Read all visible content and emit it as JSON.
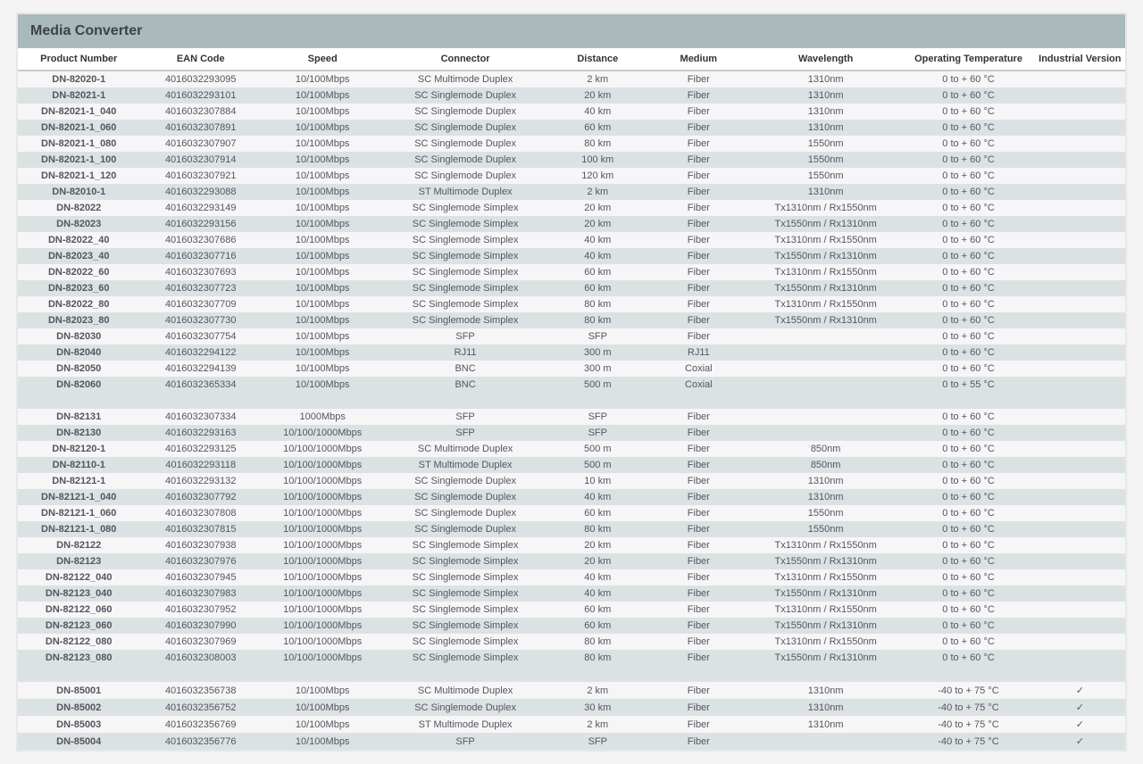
{
  "title": "Media Converter",
  "columns": [
    {
      "label": "Product Number",
      "width": "11%"
    },
    {
      "label": "EAN Code",
      "width": "11%"
    },
    {
      "label": "Speed",
      "width": "11%"
    },
    {
      "label": "Connector",
      "width": "15%"
    },
    {
      "label": "Distance",
      "width": "9%"
    },
    {
      "label": "Medium",
      "width": "9%"
    },
    {
      "label": "Wavelength",
      "width": "14%"
    },
    {
      "label": "Operating Temperature",
      "width": "12%"
    },
    {
      "label": "Industrial Version",
      "width": "8%"
    }
  ],
  "colors": {
    "page_bg": "#f3f3f3",
    "header_bg": "#aab9bc",
    "header_text": "#3b4347",
    "row_even_bg": "#f6f6f6",
    "row_odd_bg": "#dbe2e3",
    "thead_border": "#cacaca",
    "text": "#555560",
    "pn_text": "#3a3a44"
  },
  "check_glyph": "✓",
  "rows": [
    {
      "pn": "DN-82020-1",
      "ean": "4016032293095",
      "speed": "10/100Mbps",
      "conn": "SC Multimode Duplex",
      "dist": "2 km",
      "med": "Fiber",
      "wav": "1310nm",
      "temp": "0 to + 60 °C",
      "ind": ""
    },
    {
      "pn": "DN-82021-1",
      "ean": "4016032293101",
      "speed": "10/100Mbps",
      "conn": "SC Singlemode Duplex",
      "dist": "20 km",
      "med": "Fiber",
      "wav": "1310nm",
      "temp": "0 to + 60 °C",
      "ind": ""
    },
    {
      "pn": "DN-82021-1_040",
      "ean": "4016032307884",
      "speed": "10/100Mbps",
      "conn": "SC Singlemode Duplex",
      "dist": "40 km",
      "med": "Fiber",
      "wav": "1310nm",
      "temp": "0 to + 60 °C",
      "ind": ""
    },
    {
      "pn": "DN-82021-1_060",
      "ean": "4016032307891",
      "speed": "10/100Mbps",
      "conn": "SC Singlemode Duplex",
      "dist": "60 km",
      "med": "Fiber",
      "wav": "1310nm",
      "temp": "0 to + 60 °C",
      "ind": ""
    },
    {
      "pn": "DN-82021-1_080",
      "ean": "4016032307907",
      "speed": "10/100Mbps",
      "conn": "SC Singlemode Duplex",
      "dist": "80 km",
      "med": "Fiber",
      "wav": "1550nm",
      "temp": "0 to + 60 °C",
      "ind": ""
    },
    {
      "pn": "DN-82021-1_100",
      "ean": "4016032307914",
      "speed": "10/100Mbps",
      "conn": "SC Singlemode Duplex",
      "dist": "100 km",
      "med": "Fiber",
      "wav": "1550nm",
      "temp": "0 to + 60 °C",
      "ind": ""
    },
    {
      "pn": "DN-82021-1_120",
      "ean": "4016032307921",
      "speed": "10/100Mbps",
      "conn": "SC Singlemode Duplex",
      "dist": "120 km",
      "med": "Fiber",
      "wav": "1550nm",
      "temp": "0 to + 60 °C",
      "ind": ""
    },
    {
      "pn": "DN-82010-1",
      "ean": "4016032293088",
      "speed": "10/100Mbps",
      "conn": "ST Multimode Duplex",
      "dist": "2 km",
      "med": "Fiber",
      "wav": "1310nm",
      "temp": "0 to + 60 °C",
      "ind": ""
    },
    {
      "pn": "DN-82022",
      "ean": "4016032293149",
      "speed": "10/100Mbps",
      "conn": "SC Singlemode Simplex",
      "dist": "20 km",
      "med": "Fiber",
      "wav": "Tx1310nm / Rx1550nm",
      "temp": "0 to + 60 °C",
      "ind": ""
    },
    {
      "pn": "DN-82023",
      "ean": "4016032293156",
      "speed": "10/100Mbps",
      "conn": "SC Singlemode Simplex",
      "dist": "20 km",
      "med": "Fiber",
      "wav": "Tx1550nm / Rx1310nm",
      "temp": "0 to + 60 °C",
      "ind": ""
    },
    {
      "pn": "DN-82022_40",
      "ean": "4016032307686",
      "speed": "10/100Mbps",
      "conn": "SC Singlemode Simplex",
      "dist": "40 km",
      "med": "Fiber",
      "wav": "Tx1310nm / Rx1550nm",
      "temp": "0 to + 60 °C",
      "ind": ""
    },
    {
      "pn": "DN-82023_40",
      "ean": "4016032307716",
      "speed": "10/100Mbps",
      "conn": "SC Singlemode Simplex",
      "dist": "40 km",
      "med": "Fiber",
      "wav": "Tx1550nm / Rx1310nm",
      "temp": "0 to + 60 °C",
      "ind": ""
    },
    {
      "pn": "DN-82022_60",
      "ean": "4016032307693",
      "speed": "10/100Mbps",
      "conn": "SC Singlemode Simplex",
      "dist": "60 km",
      "med": "Fiber",
      "wav": "Tx1310nm / Rx1550nm",
      "temp": "0 to + 60 °C",
      "ind": ""
    },
    {
      "pn": "DN-82023_60",
      "ean": "4016032307723",
      "speed": "10/100Mbps",
      "conn": "SC Singlemode Simplex",
      "dist": "60 km",
      "med": "Fiber",
      "wav": "Tx1550nm / Rx1310nm",
      "temp": "0 to + 60 °C",
      "ind": ""
    },
    {
      "pn": "DN-82022_80",
      "ean": "4016032307709",
      "speed": "10/100Mbps",
      "conn": "SC Singlemode Simplex",
      "dist": "80 km",
      "med": "Fiber",
      "wav": "Tx1310nm / Rx1550nm",
      "temp": "0 to + 60 °C",
      "ind": ""
    },
    {
      "pn": "DN-82023_80",
      "ean": "4016032307730",
      "speed": "10/100Mbps",
      "conn": "SC Singlemode Simplex",
      "dist": "80 km",
      "med": "Fiber",
      "wav": "Tx1550nm / Rx1310nm",
      "temp": "0 to + 60 °C",
      "ind": ""
    },
    {
      "pn": "DN-82030",
      "ean": "4016032307754",
      "speed": "10/100Mbps",
      "conn": "SFP",
      "dist": "SFP",
      "med": "Fiber",
      "wav": "",
      "temp": "0 to + 60 °C",
      "ind": ""
    },
    {
      "pn": "DN-82040",
      "ean": "4016032294122",
      "speed": "10/100Mbps",
      "conn": "RJ11",
      "dist": "300 m",
      "med": "RJ11",
      "wav": "",
      "temp": "0 to + 60 °C",
      "ind": ""
    },
    {
      "pn": "DN-82050",
      "ean": "4016032294139",
      "speed": "10/100Mbps",
      "conn": "BNC",
      "dist": "300 m",
      "med": "Coxial",
      "wav": "",
      "temp": "0 to + 60 °C",
      "ind": ""
    },
    {
      "pn": "DN-82060",
      "ean": "4016032365334",
      "speed": "10/100Mbps",
      "conn": "BNC",
      "dist": "500 m",
      "med": "Coxial",
      "wav": "",
      "temp": "0 to + 55 °C",
      "ind": ""
    },
    {
      "_spacer": true
    },
    {
      "pn": "DN-82131",
      "ean": "4016032307334",
      "speed": "1000Mbps",
      "conn": "SFP",
      "dist": "SFP",
      "med": "Fiber",
      "wav": "",
      "temp": "0 to + 60 °C",
      "ind": ""
    },
    {
      "pn": "DN-82130",
      "ean": "4016032293163",
      "speed": "10/100/1000Mbps",
      "conn": "SFP",
      "dist": "SFP",
      "med": "Fiber",
      "wav": "",
      "temp": "0 to + 60 °C",
      "ind": ""
    },
    {
      "pn": "DN-82120-1",
      "ean": "4016032293125",
      "speed": "10/100/1000Mbps",
      "conn": "SC Multimode Duplex",
      "dist": "500 m",
      "med": "Fiber",
      "wav": "850nm",
      "temp": "0 to + 60 °C",
      "ind": ""
    },
    {
      "pn": "DN-82110-1",
      "ean": "4016032293118",
      "speed": "10/100/1000Mbps",
      "conn": "ST Multimode Duplex",
      "dist": "500 m",
      "med": "Fiber",
      "wav": "850nm",
      "temp": "0 to + 60 °C",
      "ind": ""
    },
    {
      "pn": "DN-82121-1",
      "ean": "4016032293132",
      "speed": "10/100/1000Mbps",
      "conn": "SC Singlemode Duplex",
      "dist": "10 km",
      "med": "Fiber",
      "wav": "1310nm",
      "temp": "0 to + 60 °C",
      "ind": ""
    },
    {
      "pn": "DN-82121-1_040",
      "ean": "4016032307792",
      "speed": "10/100/1000Mbps",
      "conn": "SC Singlemode Duplex",
      "dist": "40 km",
      "med": "Fiber",
      "wav": "1310nm",
      "temp": "0 to + 60 °C",
      "ind": ""
    },
    {
      "pn": "DN-82121-1_060",
      "ean": "4016032307808",
      "speed": "10/100/1000Mbps",
      "conn": "SC Singlemode Duplex",
      "dist": "60 km",
      "med": "Fiber",
      "wav": "1550nm",
      "temp": "0 to + 60 °C",
      "ind": ""
    },
    {
      "pn": "DN-82121-1_080",
      "ean": "4016032307815",
      "speed": "10/100/1000Mbps",
      "conn": "SC Singlemode Duplex",
      "dist": "80 km",
      "med": "Fiber",
      "wav": "1550nm",
      "temp": "0 to + 60 °C",
      "ind": ""
    },
    {
      "pn": "DN-82122",
      "ean": "4016032307938",
      "speed": "10/100/1000Mbps",
      "conn": "SC Singlemode Simplex",
      "dist": "20 km",
      "med": "Fiber",
      "wav": "Tx1310nm / Rx1550nm",
      "temp": "0 to + 60 °C",
      "ind": ""
    },
    {
      "pn": "DN-82123",
      "ean": "4016032307976",
      "speed": "10/100/1000Mbps",
      "conn": "SC Singlemode Simplex",
      "dist": "20 km",
      "med": "Fiber",
      "wav": "Tx1550nm / Rx1310nm",
      "temp": "0 to + 60 °C",
      "ind": ""
    },
    {
      "pn": "DN-82122_040",
      "ean": "4016032307945",
      "speed": "10/100/1000Mbps",
      "conn": "SC Singlemode Simplex",
      "dist": "40 km",
      "med": "Fiber",
      "wav": "Tx1310nm / Rx1550nm",
      "temp": "0 to + 60 °C",
      "ind": ""
    },
    {
      "pn": "DN-82123_040",
      "ean": "4016032307983",
      "speed": "10/100/1000Mbps",
      "conn": "SC Singlemode Simplex",
      "dist": "40 km",
      "med": "Fiber",
      "wav": "Tx1550nm / Rx1310nm",
      "temp": "0 to + 60 °C",
      "ind": ""
    },
    {
      "pn": "DN-82122_060",
      "ean": "4016032307952",
      "speed": "10/100/1000Mbps",
      "conn": "SC Singlemode Simplex",
      "dist": "60 km",
      "med": "Fiber",
      "wav": "Tx1310nm / Rx1550nm",
      "temp": "0 to + 60 °C",
      "ind": ""
    },
    {
      "pn": "DN-82123_060",
      "ean": "4016032307990",
      "speed": "10/100/1000Mbps",
      "conn": "SC Singlemode Simplex",
      "dist": "60 km",
      "med": "Fiber",
      "wav": "Tx1550nm / Rx1310nm",
      "temp": "0 to + 60 °C",
      "ind": ""
    },
    {
      "pn": "DN-82122_080",
      "ean": "4016032307969",
      "speed": "10/100/1000Mbps",
      "conn": "SC Singlemode Simplex",
      "dist": "80 km",
      "med": "Fiber",
      "wav": "Tx1310nm / Rx1550nm",
      "temp": "0 to + 60 °C",
      "ind": ""
    },
    {
      "pn": "DN-82123_080",
      "ean": "4016032308003",
      "speed": "10/100/1000Mbps",
      "conn": "SC Singlemode Simplex",
      "dist": "80 km",
      "med": "Fiber",
      "wav": "Tx1550nm / Rx1310nm",
      "temp": "0 to + 60 °C",
      "ind": ""
    },
    {
      "_spacer": true
    },
    {
      "pn": "DN-85001",
      "ean": "4016032356738",
      "speed": "10/100Mbps",
      "conn": "SC Multimode Duplex",
      "dist": "2 km",
      "med": "Fiber",
      "wav": "1310nm",
      "temp": "-40 to + 75 °C",
      "ind": "✓"
    },
    {
      "pn": "DN-85002",
      "ean": "4016032356752",
      "speed": "10/100Mbps",
      "conn": "SC Singlemode Duplex",
      "dist": "30 km",
      "med": "Fiber",
      "wav": "1310nm",
      "temp": "-40 to + 75 °C",
      "ind": "✓"
    },
    {
      "pn": "DN-85003",
      "ean": "4016032356769",
      "speed": "10/100Mbps",
      "conn": "ST Multimode Duplex",
      "dist": "2 km",
      "med": "Fiber",
      "wav": "1310nm",
      "temp": "-40 to + 75 °C",
      "ind": "✓"
    },
    {
      "pn": "DN-85004",
      "ean": "4016032356776",
      "speed": "10/100Mbps",
      "conn": "SFP",
      "dist": "SFP",
      "med": "Fiber",
      "wav": "",
      "temp": "-40 to + 75 °C",
      "ind": "✓"
    }
  ]
}
